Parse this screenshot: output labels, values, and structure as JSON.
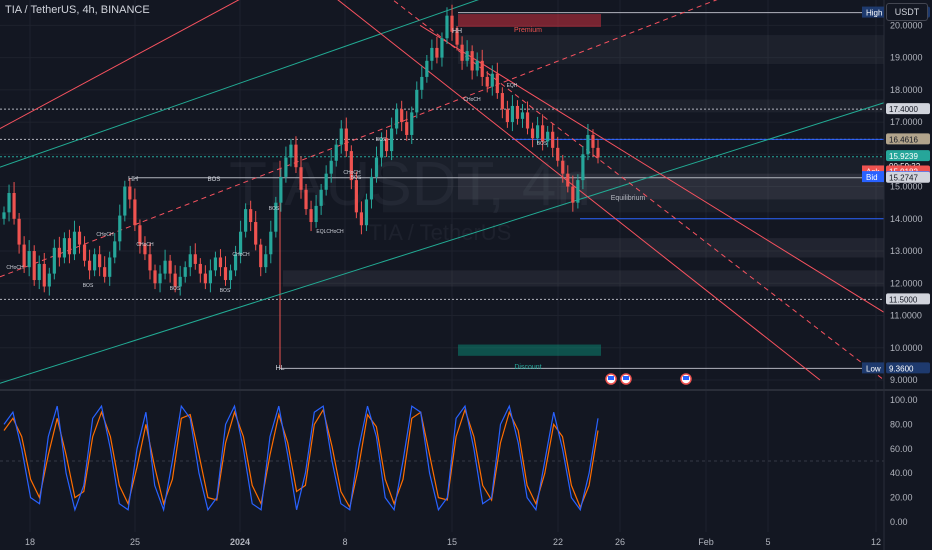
{
  "header": {
    "symbol_line": "TIA / TetherUS, 4h, BINANCE",
    "currency": "USDT"
  },
  "watermark": {
    "big": "TIAUSDT, 4h",
    "small": "TIA / TetherUS"
  },
  "price_axis": {
    "ticks": [
      9.0,
      10.0,
      11.0,
      12.0,
      13.0,
      14.0,
      15.0,
      16.0,
      17.0,
      18.0,
      19.0,
      20.0
    ],
    "decimals": 4
  },
  "levels": {
    "high": {
      "label": "High",
      "value": "20.3963"
    },
    "low": {
      "label": "Low",
      "value": "9.3600"
    },
    "l1740": "17.4000",
    "l1646": "16.4616",
    "last": "15.9239",
    "countdown": "00:59:32",
    "ask": {
      "label": "Ask",
      "value": "15.9182"
    },
    "bid": {
      "label": "Bid",
      "value": "15.9131"
    },
    "l1527": "15.2747",
    "l1150": "11.5000"
  },
  "zones": {
    "premium": "Premium",
    "equilibrium": "Equilibrium",
    "discount": "Discount"
  },
  "structure_labels": {
    "hh": "HH",
    "hl": "HL",
    "bos": "BOS",
    "choch": "CHoCH",
    "eqh": "EQH",
    "eqlchoch": "EQLCHoCH"
  },
  "time_axis": {
    "labels": [
      "18",
      "25",
      "2024",
      "8",
      "15",
      "22",
      "26",
      "Feb",
      "5",
      "12"
    ]
  },
  "osc_axis": {
    "ticks": [
      "100.00",
      "80.00",
      "60.00",
      "40.00",
      "20.00",
      "0.00"
    ]
  },
  "colors": {
    "bg": "#131722",
    "up": "#26a69a",
    "down": "#ef5350",
    "k_line": "#2962ff",
    "d_line": "#ff6d00",
    "channel_orange": "#f7525f",
    "channel_green": "#22ab94"
  },
  "chart_data": {
    "type": "candlestick",
    "title": "TIA / TetherUS, 4h, BINANCE",
    "ylim": [
      9.0,
      20.6
    ],
    "ohlc_closes_approx": [
      14.2,
      14.8,
      14.0,
      13.2,
      12.5,
      13.0,
      12.1,
      12.6,
      11.9,
      12.3,
      13.1,
      12.8,
      13.4,
      12.9,
      13.6,
      13.2,
      12.7,
      12.4,
      12.9,
      12.5,
      12.2,
      12.8,
      13.3,
      14.1,
      15.0,
      14.6,
      13.8,
      13.2,
      12.9,
      12.4,
      12.0,
      12.3,
      12.7,
      12.3,
      11.9,
      12.2,
      12.5,
      12.9,
      12.6,
      12.3,
      12.0,
      12.4,
      12.8,
      12.5,
      12.1,
      12.4,
      12.9,
      13.6,
      14.3,
      13.9,
      13.2,
      12.5,
      12.9,
      13.6,
      14.5,
      15.3,
      15.9,
      16.3,
      15.6,
      14.9,
      14.3,
      13.9,
      14.4,
      14.9,
      15.4,
      15.8,
      16.3,
      16.8,
      16.1,
      15.2,
      14.2,
      13.8,
      14.6,
      15.3,
      15.9,
      16.5,
      16.1,
      16.8,
      17.4,
      17.0,
      16.6,
      17.3,
      18.0,
      18.4,
      18.9,
      19.3,
      19.0,
      19.6,
      20.3,
      19.8,
      19.4,
      18.9,
      19.2,
      18.6,
      18.9,
      18.4,
      18.1,
      18.5,
      17.9,
      17.4,
      17.0,
      17.5,
      17.1,
      17.3,
      16.8,
      16.5,
      16.9,
      16.4,
      16.7,
      16.2,
      15.8,
      15.4,
      15.0,
      14.5,
      15.2,
      16.0,
      16.6,
      16.2,
      15.9
    ],
    "stoch_k_approx": [
      80,
      90,
      60,
      20,
      15,
      70,
      95,
      40,
      10,
      30,
      85,
      95,
      60,
      15,
      10,
      60,
      90,
      30,
      10,
      50,
      95,
      85,
      40,
      10,
      20,
      80,
      95,
      60,
      15,
      10,
      70,
      95,
      55,
      10,
      40,
      90,
      95,
      50,
      15,
      10,
      60,
      95,
      70,
      20,
      10,
      50,
      95,
      90,
      40,
      10,
      20,
      85,
      95,
      60,
      15,
      20,
      80,
      95,
      65,
      20,
      10,
      50,
      90,
      60,
      20,
      10,
      40,
      85
    ],
    "stoch_d_approx": [
      75,
      85,
      70,
      35,
      20,
      55,
      85,
      55,
      20,
      25,
      70,
      90,
      70,
      30,
      15,
      45,
      80,
      45,
      15,
      35,
      85,
      88,
      55,
      20,
      18,
      65,
      90,
      70,
      30,
      15,
      55,
      88,
      65,
      25,
      30,
      80,
      92,
      62,
      25,
      12,
      45,
      88,
      78,
      35,
      15,
      35,
      85,
      90,
      55,
      20,
      18,
      70,
      92,
      70,
      30,
      18,
      65,
      90,
      75,
      30,
      15,
      40,
      80,
      70,
      30,
      12,
      30,
      75
    ],
    "osc_ylim": [
      0,
      100
    ]
  }
}
